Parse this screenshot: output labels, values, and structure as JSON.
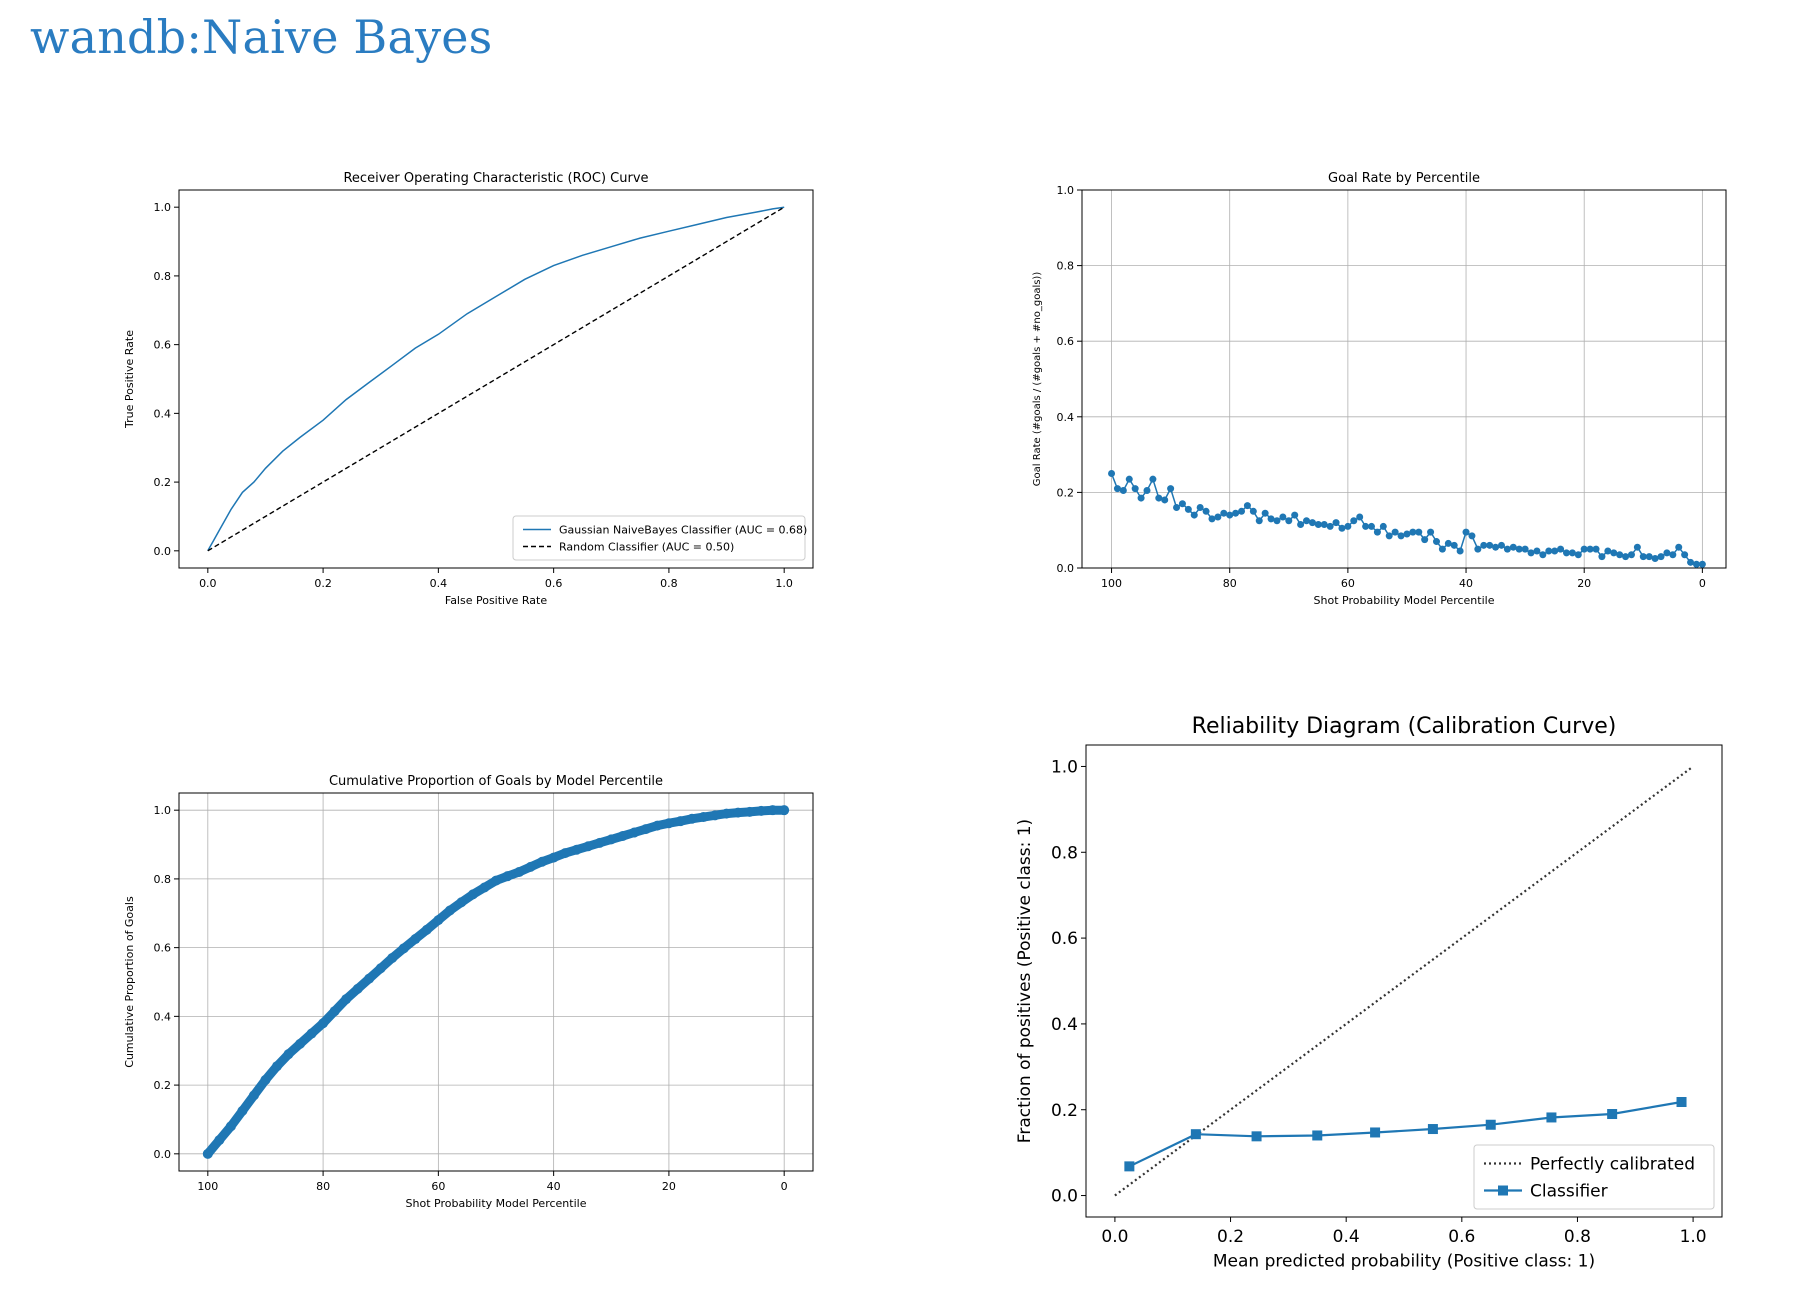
{
  "page": {
    "title": "wandb:Naive Bayes"
  },
  "colors": {
    "series": "#1f77b4",
    "title": "#2a7cc1",
    "reference": "#000000"
  },
  "chart_data": [
    {
      "id": "roc",
      "type": "line",
      "title": "Receiver Operating Characteristic (ROC) Curve",
      "xlabel": "False Positive Rate",
      "ylabel": "True Positive Rate",
      "xlim": [
        -0.05,
        1.05
      ],
      "ylim": [
        -0.05,
        1.05
      ],
      "xticks": [
        0.0,
        0.2,
        0.4,
        0.6,
        0.8,
        1.0
      ],
      "yticks": [
        0.0,
        0.2,
        0.4,
        0.6,
        0.8,
        1.0
      ],
      "tick_format": 1,
      "grid": false,
      "legend": "lower right",
      "series": [
        {
          "name": "Gaussian NaiveBayes Classifier (AUC = 0.68)",
          "style": "line",
          "x": [
            0.0,
            0.01,
            0.02,
            0.04,
            0.06,
            0.08,
            0.1,
            0.13,
            0.16,
            0.2,
            0.24,
            0.28,
            0.32,
            0.36,
            0.4,
            0.45,
            0.5,
            0.55,
            0.6,
            0.65,
            0.7,
            0.75,
            0.8,
            0.85,
            0.9,
            0.95,
            0.98,
            1.0
          ],
          "y": [
            0.0,
            0.03,
            0.06,
            0.12,
            0.17,
            0.2,
            0.24,
            0.29,
            0.33,
            0.38,
            0.44,
            0.49,
            0.54,
            0.59,
            0.63,
            0.69,
            0.74,
            0.79,
            0.83,
            0.86,
            0.885,
            0.91,
            0.93,
            0.95,
            0.97,
            0.985,
            0.995,
            1.0
          ]
        },
        {
          "name": "Random Classifier (AUC = 0.50)",
          "style": "dashed",
          "x": [
            0.0,
            1.0
          ],
          "y": [
            0.0,
            1.0
          ]
        }
      ]
    },
    {
      "id": "goal-rate",
      "type": "line",
      "title": "Goal Rate by Percentile",
      "xlabel": "Shot Probability Model Percentile",
      "ylabel": "Goal Rate (#goals / (#goals + #no_goals))",
      "xlim": [
        105,
        -4
      ],
      "ylim": [
        0.0,
        1.0
      ],
      "xticks": [
        100,
        80,
        60,
        40,
        20,
        0
      ],
      "yticks": [
        0.0,
        0.2,
        0.4,
        0.6,
        0.8,
        1.0
      ],
      "tick_format": 1,
      "grid": true,
      "series": [
        {
          "name": "",
          "style": "line-markers",
          "x": [
            100,
            99,
            98,
            97,
            96,
            95,
            94,
            93,
            92,
            91,
            90,
            89,
            88,
            87,
            86,
            85,
            84,
            83,
            82,
            81,
            80,
            79,
            78,
            77,
            76,
            75,
            74,
            73,
            72,
            71,
            70,
            69,
            68,
            67,
            66,
            65,
            64,
            63,
            62,
            61,
            60,
            59,
            58,
            57,
            56,
            55,
            54,
            53,
            52,
            51,
            50,
            49,
            48,
            47,
            46,
            45,
            44,
            43,
            42,
            41,
            40,
            39,
            38,
            37,
            36,
            35,
            34,
            33,
            32,
            31,
            30,
            29,
            28,
            27,
            26,
            25,
            24,
            23,
            22,
            21,
            20,
            19,
            18,
            17,
            16,
            15,
            14,
            13,
            12,
            11,
            10,
            9,
            8,
            7,
            6,
            5,
            4,
            3,
            2,
            1,
            0
          ],
          "y": [
            0.25,
            0.21,
            0.205,
            0.235,
            0.21,
            0.185,
            0.205,
            0.235,
            0.185,
            0.18,
            0.21,
            0.16,
            0.17,
            0.155,
            0.14,
            0.16,
            0.15,
            0.13,
            0.135,
            0.145,
            0.14,
            0.145,
            0.15,
            0.165,
            0.15,
            0.125,
            0.145,
            0.13,
            0.125,
            0.135,
            0.125,
            0.14,
            0.115,
            0.125,
            0.12,
            0.115,
            0.115,
            0.11,
            0.12,
            0.105,
            0.11,
            0.125,
            0.135,
            0.11,
            0.11,
            0.095,
            0.11,
            0.085,
            0.095,
            0.085,
            0.09,
            0.095,
            0.095,
            0.075,
            0.095,
            0.07,
            0.05,
            0.065,
            0.06,
            0.045,
            0.095,
            0.085,
            0.05,
            0.06,
            0.06,
            0.055,
            0.06,
            0.05,
            0.055,
            0.05,
            0.05,
            0.04,
            0.045,
            0.035,
            0.045,
            0.045,
            0.05,
            0.04,
            0.04,
            0.035,
            0.05,
            0.05,
            0.05,
            0.03,
            0.045,
            0.04,
            0.035,
            0.03,
            0.035,
            0.055,
            0.03,
            0.03,
            0.025,
            0.03,
            0.04,
            0.035,
            0.055,
            0.035,
            0.015,
            0.01,
            0.01
          ]
        }
      ]
    },
    {
      "id": "cumulative",
      "type": "scatter",
      "title": "Cumulative Proportion of Goals by Model Percentile",
      "xlabel": "Shot Probability Model Percentile",
      "ylabel": "Cumulative Proportion of Goals",
      "xlim": [
        105,
        -5
      ],
      "ylim": [
        -0.05,
        1.05
      ],
      "xticks": [
        100,
        80,
        60,
        40,
        20,
        0
      ],
      "yticks": [
        0.0,
        0.2,
        0.4,
        0.6,
        0.8,
        1.0
      ],
      "tick_format": 1,
      "grid": true,
      "series": [
        {
          "name": "",
          "style": "thick-markers",
          "x": [
            100,
            98,
            96,
            94,
            92,
            90,
            88,
            86,
            84,
            82,
            80,
            78,
            76,
            74,
            72,
            70,
            68,
            66,
            64,
            62,
            60,
            58,
            56,
            54,
            52,
            50,
            48,
            46,
            44,
            42,
            40,
            38,
            36,
            34,
            32,
            30,
            28,
            26,
            24,
            22,
            20,
            18,
            16,
            14,
            12,
            10,
            8,
            6,
            4,
            2,
            0
          ],
          "y": [
            0.0,
            0.04,
            0.08,
            0.125,
            0.17,
            0.215,
            0.255,
            0.29,
            0.32,
            0.35,
            0.38,
            0.415,
            0.45,
            0.48,
            0.51,
            0.54,
            0.57,
            0.598,
            0.625,
            0.652,
            0.68,
            0.708,
            0.732,
            0.755,
            0.775,
            0.795,
            0.808,
            0.82,
            0.835,
            0.85,
            0.862,
            0.875,
            0.885,
            0.895,
            0.905,
            0.915,
            0.925,
            0.935,
            0.945,
            0.955,
            0.962,
            0.968,
            0.975,
            0.98,
            0.985,
            0.99,
            0.993,
            0.995,
            0.998,
            1.0,
            1.0
          ]
        }
      ]
    },
    {
      "id": "calibration",
      "type": "line",
      "title": "Reliability Diagram (Calibration Curve)",
      "xlabel": "Mean predicted probability (Positive class: 1)",
      "ylabel": "Fraction of positives (Positive class: 1)",
      "xlim": [
        -0.05,
        1.05
      ],
      "ylim": [
        -0.05,
        1.05
      ],
      "xticks": [
        0.0,
        0.2,
        0.4,
        0.6,
        0.8,
        1.0
      ],
      "yticks": [
        0.0,
        0.2,
        0.4,
        0.6,
        0.8,
        1.0
      ],
      "tick_format": 1,
      "grid": false,
      "legend": "lower right",
      "series": [
        {
          "name": "Perfectly calibrated",
          "style": "dotted",
          "x": [
            0.0,
            1.0
          ],
          "y": [
            0.0,
            1.0
          ]
        },
        {
          "name": "Classifier",
          "style": "line-squares",
          "x": [
            0.025,
            0.14,
            0.245,
            0.35,
            0.45,
            0.55,
            0.65,
            0.755,
            0.86,
            0.98
          ],
          "y": [
            0.068,
            0.143,
            0.138,
            0.14,
            0.147,
            0.155,
            0.165,
            0.182,
            0.19,
            0.218
          ]
        }
      ]
    }
  ]
}
